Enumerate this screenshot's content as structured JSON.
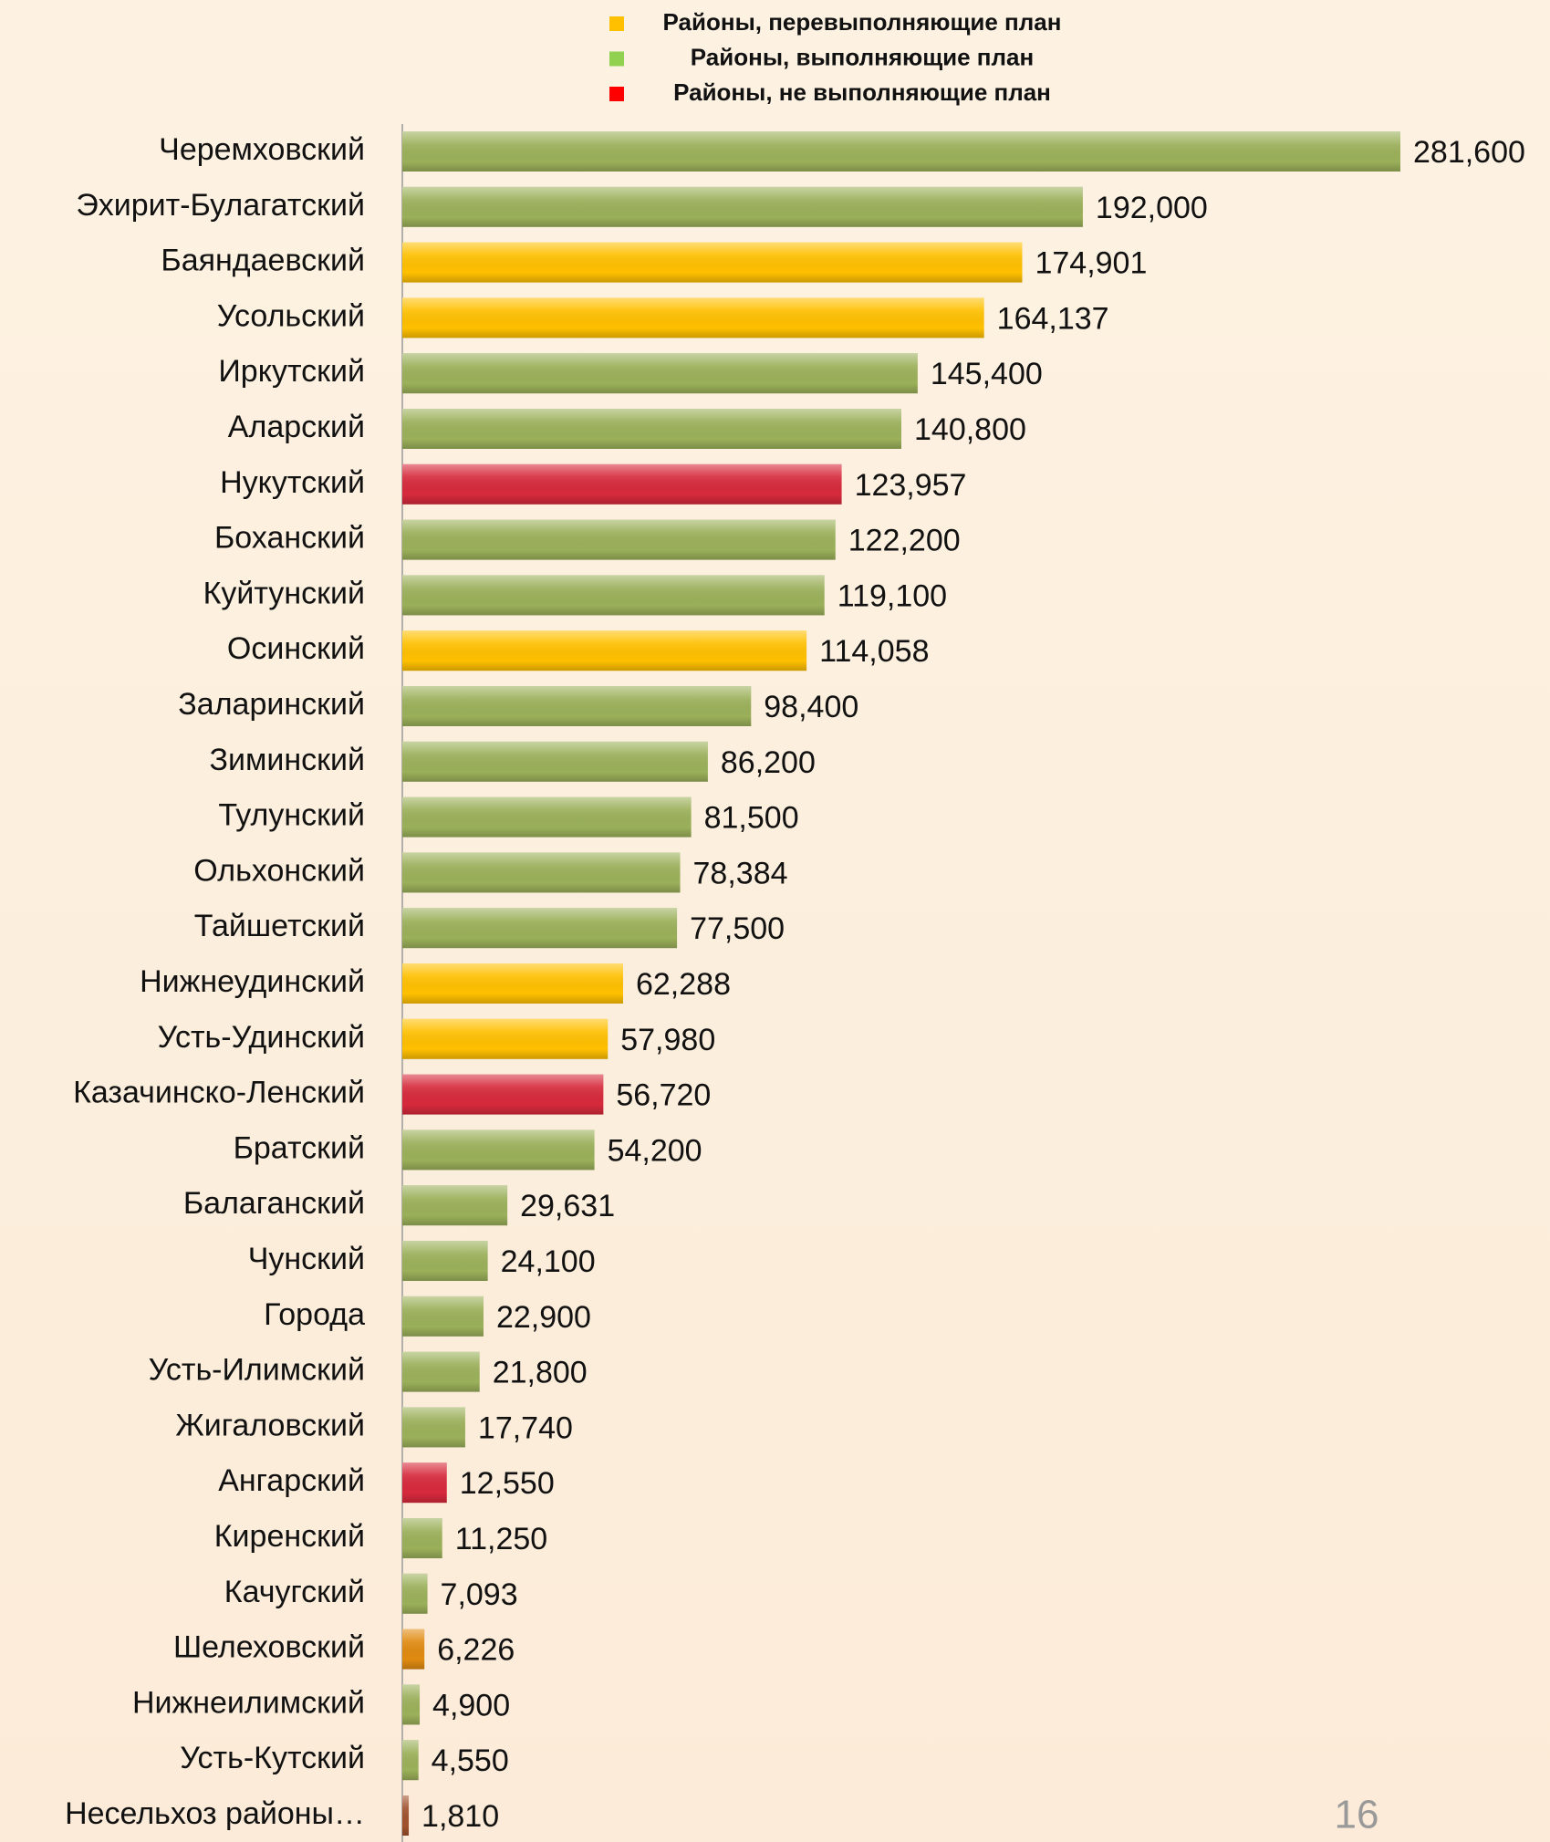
{
  "chart_data": {
    "type": "bar",
    "orientation": "horizontal",
    "legend": [
      {
        "name": "Районы, перевыполняющие план",
        "color": "#ffc000"
      },
      {
        "name": "Районы, выполняющие план",
        "color": "#92d050"
      },
      {
        "name": "Районы, не выполняющие план",
        "color": "#ff0000"
      }
    ],
    "categories": [
      "Черемховский",
      "Эхирит-Булагатский",
      "Баяндаевский",
      "Усольский",
      "Иркутский",
      "Аларский",
      "Нукутский",
      "Боханский",
      "Куйтунский",
      "Осинский",
      "Заларинский",
      "Зиминский",
      "Тулунский",
      "Ольхонский",
      "Тайшетский",
      "Нижнеудинский",
      "Усть-Удинский",
      "Казачинско-Ленский",
      "Братский",
      "Балаганский",
      "Чунский",
      "Города",
      "Усть-Илимский",
      "Жигаловский",
      "Ангарский",
      "Киренский",
      "Качугский",
      "Шелеховский",
      "Нижнеилимский",
      "Усть-Кутский",
      "Несельхоз районы…"
    ],
    "values": [
      281600,
      192000,
      174901,
      164137,
      145400,
      140800,
      123957,
      122200,
      119100,
      114058,
      98400,
      86200,
      81500,
      78384,
      77500,
      62288,
      57980,
      56720,
      54200,
      29631,
      24100,
      22900,
      21800,
      17740,
      12550,
      11250,
      7093,
      6226,
      4900,
      4550,
      1810
    ],
    "value_labels": [
      "281,600",
      "192,000",
      "174,901",
      "164,137",
      "145,400",
      "140,800",
      "123,957",
      "122,200",
      "119,100",
      "114,058",
      "98,400",
      "86,200",
      "81,500",
      "78,384",
      "77,500",
      "62,288",
      "57,980",
      "56,720",
      "54,200",
      "29,631",
      "24,100",
      "22,900",
      "21,800",
      "17,740",
      "12,550",
      "11,250",
      "7,093",
      "6,226",
      "4,900",
      "4,550",
      "1,810"
    ],
    "colors": [
      "#9bb05a",
      "#9bb05a",
      "#ffc000",
      "#ffc000",
      "#9bb05a",
      "#9bb05a",
      "#d62a3c",
      "#9bb05a",
      "#9bb05a",
      "#ffc000",
      "#9bb05a",
      "#9bb05a",
      "#9bb05a",
      "#9bb05a",
      "#9bb05a",
      "#ffc000",
      "#ffc000",
      "#d62a3c",
      "#9bb05a",
      "#9bb05a",
      "#9bb05a",
      "#9bb05a",
      "#9bb05a",
      "#9bb05a",
      "#d62a3c",
      "#9bb05a",
      "#9bb05a",
      "#e08a10",
      "#9bb05a",
      "#9bb05a",
      "#a0522d"
    ]
  },
  "page_number": "16"
}
